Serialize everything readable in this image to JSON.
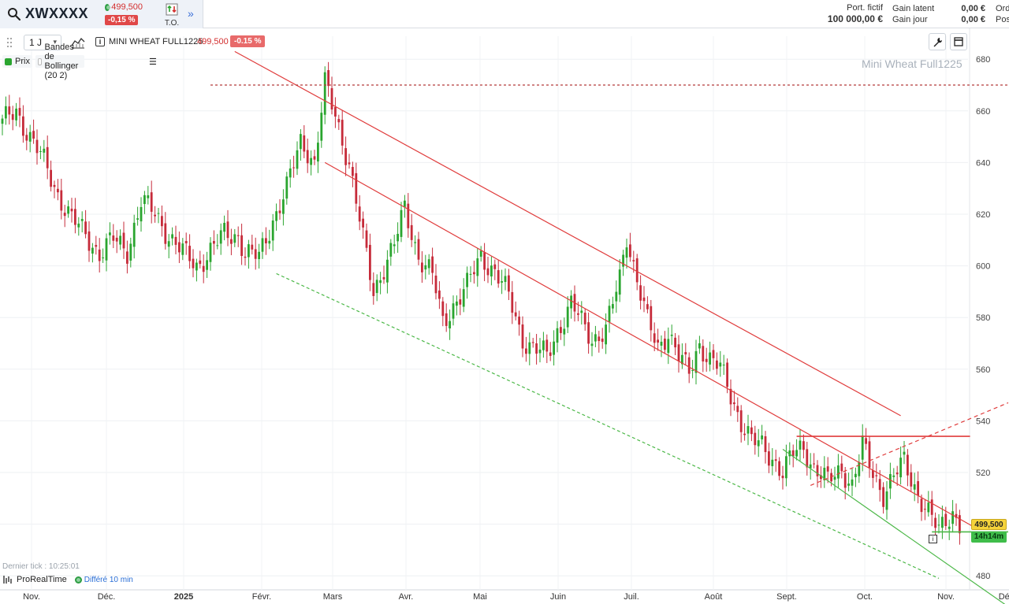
{
  "header": {
    "ticker": "XWXXXX",
    "quote": {
      "price": "499,500",
      "change": "-0,15 %"
    },
    "to_label": "T.O.",
    "account": {
      "port_label": "Port. fictif",
      "port_value": "100 000,00 €",
      "gain_latent_label": "Gain latent",
      "gain_latent_value": "0,00 €",
      "gain_jour_label": "Gain jour",
      "gain_jour_value": "0,00 €",
      "extra1": "Ord",
      "extra2": "Pos"
    }
  },
  "toolbar": {
    "period": "1 J",
    "instrument_name": "MINI WHEAT FULL1225",
    "instrument_price": "499,500",
    "instrument_change": "-0.15 %"
  },
  "legend": {
    "prix": "Prix",
    "bollinger": "Bandes de Bollinger (20 2)"
  },
  "watermark": "Mini Wheat Full1225",
  "footer": {
    "last_tick": "Dernier tick : 10:25:01",
    "brand": "ProRealTime",
    "delay": "Différé 10 min"
  },
  "price_tags": {
    "last": "499,500",
    "timer": "14h14m"
  },
  "colors": {
    "up": "#2aa52f",
    "down": "#c62b3a",
    "trend": "#e03c3c",
    "support": "#4cb848"
  },
  "chart_data": {
    "type": "candlestick",
    "y_ticks": [
      480,
      500,
      520,
      540,
      560,
      580,
      600,
      620,
      640,
      660,
      680
    ],
    "y_tick_labels": [
      "480",
      "",
      "520",
      "540",
      "560",
      "580",
      "600",
      "620",
      "640",
      "660",
      "680"
    ],
    "x_labels": [
      "Nov.",
      "Déc.",
      "2025",
      "Févr.",
      "Mars",
      "Avr.",
      "Mai",
      "Juin",
      "Juil.",
      "Août",
      "Sept.",
      "Oct.",
      "Nov.",
      "Déc."
    ],
    "close_path": [
      [
        0,
        655
      ],
      [
        4,
        660
      ],
      [
        8,
        650
      ],
      [
        12,
        640
      ],
      [
        16,
        628
      ],
      [
        20,
        618
      ],
      [
        24,
        612
      ],
      [
        28,
        605
      ],
      [
        32,
        610
      ],
      [
        36,
        606
      ],
      [
        40,
        625
      ],
      [
        44,
        620
      ],
      [
        48,
        612
      ],
      [
        52,
        605
      ],
      [
        56,
        600
      ],
      [
        60,
        606
      ],
      [
        64,
        612
      ],
      [
        68,
        612
      ],
      [
        70,
        605
      ],
      [
        74,
        603
      ],
      [
        78,
        618
      ],
      [
        82,
        630
      ],
      [
        86,
        648
      ],
      [
        88,
        645
      ],
      [
        90,
        640
      ],
      [
        93,
        670
      ],
      [
        96,
        658
      ],
      [
        100,
        640
      ],
      [
        104,
        610
      ],
      [
        107,
        590
      ],
      [
        110,
        600
      ],
      [
        113,
        608
      ],
      [
        116,
        622
      ],
      [
        120,
        604
      ],
      [
        124,
        596
      ],
      [
        127,
        578
      ],
      [
        130,
        585
      ],
      [
        134,
        592
      ],
      [
        138,
        604
      ],
      [
        142,
        598
      ],
      [
        146,
        588
      ],
      [
        150,
        572
      ],
      [
        153,
        568
      ],
      [
        157,
        565
      ],
      [
        160,
        575
      ],
      [
        164,
        585
      ],
      [
        167,
        578
      ],
      [
        170,
        572
      ],
      [
        174,
        575
      ],
      [
        178,
        595
      ],
      [
        180,
        612
      ],
      [
        183,
        595
      ],
      [
        186,
        578
      ],
      [
        189,
        568
      ],
      [
        192,
        575
      ],
      [
        195,
        565
      ],
      [
        198,
        558
      ],
      [
        201,
        570
      ],
      [
        204,
        564
      ],
      [
        207,
        560
      ],
      [
        210,
        550
      ],
      [
        213,
        540
      ],
      [
        216,
        532
      ],
      [
        219,
        530
      ],
      [
        222,
        526
      ],
      [
        225,
        520
      ],
      [
        228,
        527
      ],
      [
        231,
        530
      ],
      [
        234,
        522
      ],
      [
        238,
        516
      ],
      [
        242,
        522
      ],
      [
        245,
        515
      ],
      [
        248,
        530
      ],
      [
        251,
        520
      ],
      [
        254,
        512
      ],
      [
        257,
        518
      ],
      [
        260,
        524
      ],
      [
        264,
        512
      ],
      [
        267,
        504
      ],
      [
        270,
        497
      ],
      [
        272,
        502
      ],
      [
        274,
        505
      ],
      [
        276,
        500
      ]
    ],
    "lines": [
      {
        "name": "upper-channel",
        "style": "solid",
        "points": [
          [
            67,
            683
          ],
          [
            259,
            542
          ]
        ]
      },
      {
        "name": "mid-channel",
        "style": "solid",
        "points": [
          [
            93,
            640
          ],
          [
            280,
            499
          ]
        ]
      },
      {
        "name": "lower-channel-dashed",
        "style": "dashed",
        "points": [
          [
            79,
            597
          ],
          [
            270,
            479
          ]
        ]
      },
      {
        "name": "green-support",
        "style": "solid",
        "points": [
          [
            225,
            529
          ],
          [
            289,
            469
          ]
        ]
      },
      {
        "name": "resistance-horizontal",
        "style": "solid",
        "points": [
          [
            229,
            534
          ],
          [
            279,
            534
          ]
        ]
      },
      {
        "name": "rising-dashed",
        "style": "dashed",
        "points": [
          [
            233,
            515
          ],
          [
            290,
            547
          ]
        ]
      },
      {
        "name": "top-horizontal-dashed",
        "style": "dashed",
        "points": [
          [
            60,
            670
          ],
          [
            290,
            670
          ]
        ]
      },
      {
        "name": "last-price-support",
        "style": "solid",
        "points": [
          [
            268,
            497
          ],
          [
            290,
            497
          ]
        ]
      }
    ]
  }
}
